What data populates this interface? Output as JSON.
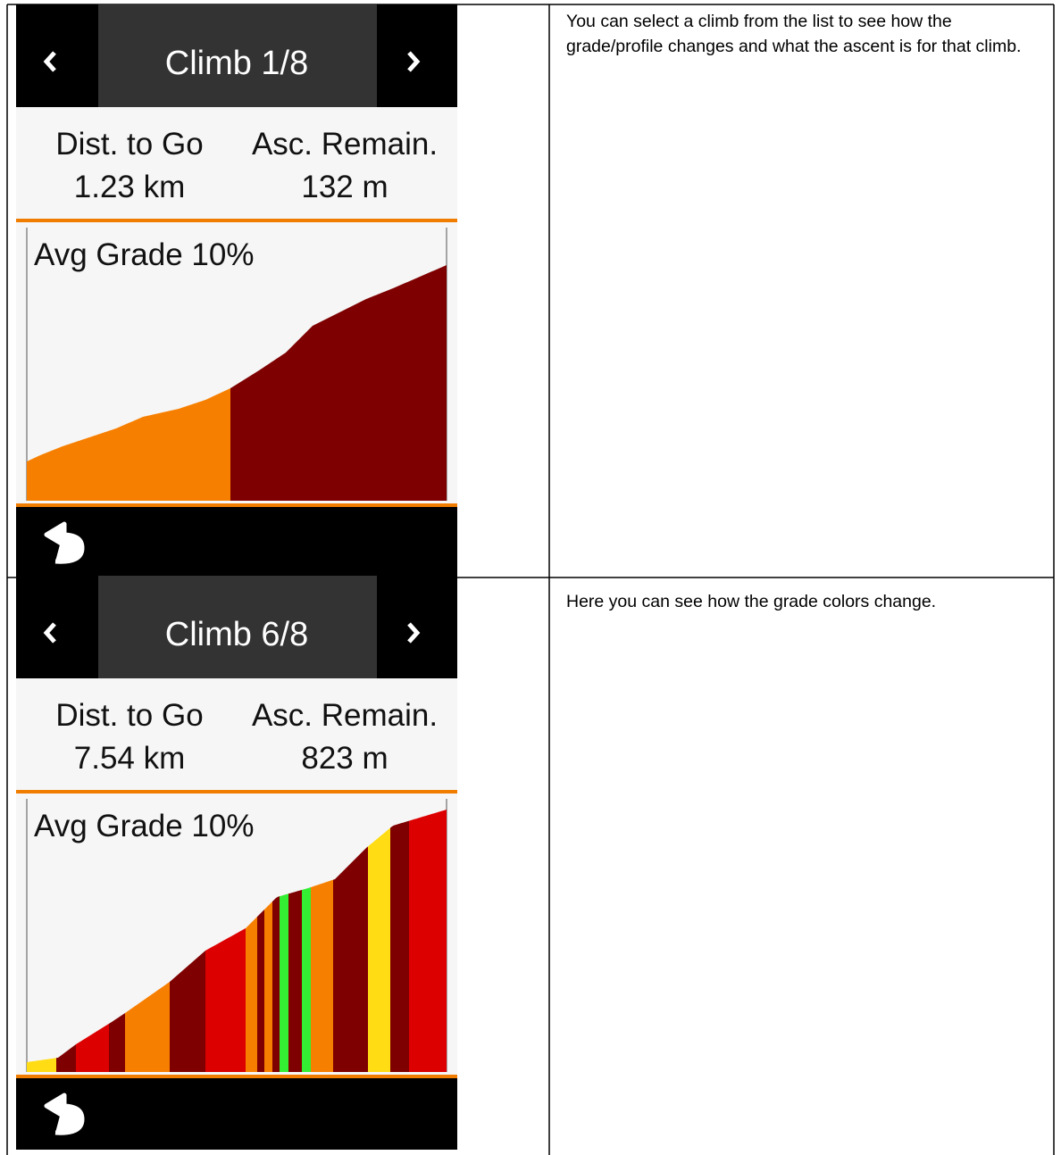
{
  "rows": [
    {
      "screen": {
        "title": "Climb 1/8",
        "labels": [
          "Dist. to Go",
          "Asc. Remain."
        ],
        "values": [
          "1.23 km",
          "132 m"
        ],
        "graph_label": "Avg Grade 10%"
      },
      "text": "You can select a climb from the list to see how the grade/profile changes and what the ascent is for that climb."
    },
    {
      "screen": {
        "title": "Climb 6/8",
        "labels": [
          "Dist. to Go",
          "Asc. Remain."
        ],
        "values": [
          "7.54 km",
          "823 m"
        ],
        "graph_label": "Avg Grade 10%"
      },
      "text": "Here you can see how the grade colors change."
    }
  ]
}
